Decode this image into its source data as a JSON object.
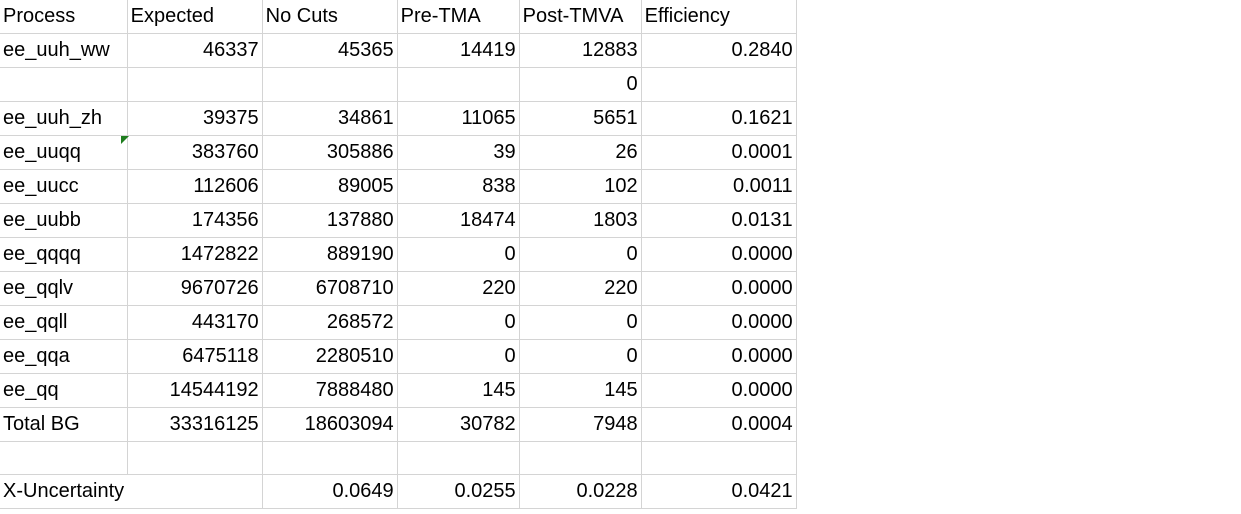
{
  "colors": {
    "gridline": "#d4d4d4",
    "comment_marker": "#1e7d1e"
  },
  "header": [
    "Process",
    "Expected",
    "No Cuts",
    "Pre-TMA",
    "Post-TMVA",
    "Efficiency"
  ],
  "rows": [
    [
      "ee_uuh_ww",
      "46337",
      "45365",
      "14419",
      "12883",
      "0.2840"
    ],
    [
      "",
      "",
      "",
      "",
      "0",
      ""
    ],
    [
      "ee_uuh_zh",
      "39375",
      "34861",
      "11065",
      "5651",
      "0.1621"
    ],
    [
      "ee_uuqq",
      "383760",
      "305886",
      "39",
      "26",
      "0.0001"
    ],
    [
      "ee_uucc",
      "112606",
      "89005",
      "838",
      "102",
      "0.0011"
    ],
    [
      "ee_uubb",
      "174356",
      "137880",
      "18474",
      "1803",
      "0.0131"
    ],
    [
      "ee_qqqq",
      "1472822",
      "889190",
      "0",
      "0",
      "0.0000"
    ],
    [
      "ee_qqlv",
      "9670726",
      "6708710",
      "220",
      "220",
      "0.0000"
    ],
    [
      "ee_qqll",
      "443170",
      "268572",
      "0",
      "0",
      "0.0000"
    ],
    [
      "ee_qqa",
      "6475118",
      "2280510",
      "0",
      "0",
      "0.0000"
    ],
    [
      "ee_qq",
      "14544192",
      "7888480",
      "145",
      "145",
      "0.0000"
    ],
    [
      "Total BG",
      "33316125",
      "18603094",
      "30782",
      "7948",
      "0.0004"
    ],
    [
      "",
      "",
      "",
      "",
      "",
      ""
    ]
  ],
  "uncertainty": [
    "X-Uncertainty",
    "",
    "0.0649",
    "0.0255",
    "0.0228",
    "0.0421"
  ]
}
